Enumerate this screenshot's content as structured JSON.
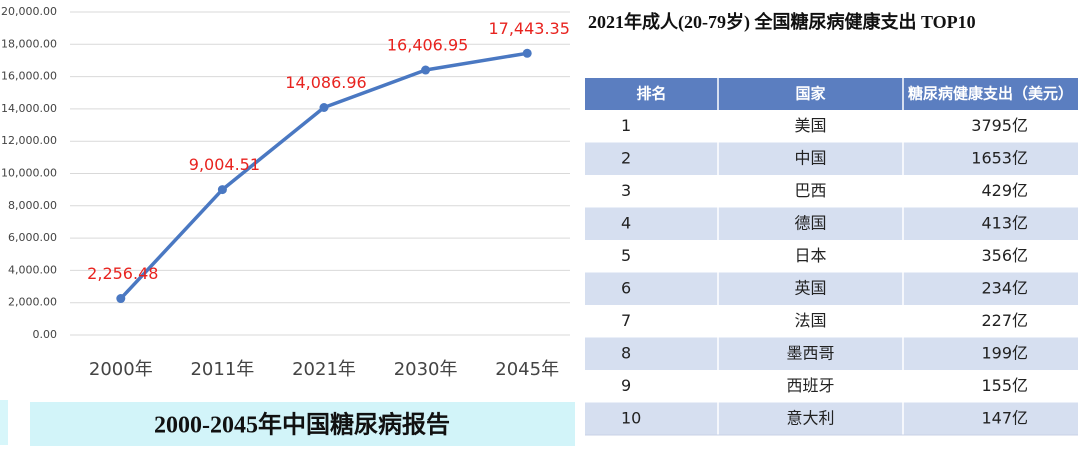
{
  "chart_data": {
    "type": "line",
    "categories": [
      "2000年",
      "2011年",
      "2021年",
      "2030年",
      "2045年"
    ],
    "series": [
      {
        "color": "#4a78c2",
        "values": [
          2256.48,
          9004.51,
          14086.96,
          16406.95,
          17443.35
        ],
        "value_labels": [
          "2,256.48",
          "9,004.51",
          "14,086.96",
          "16,406.95",
          "17,443.35"
        ]
      }
    ],
    "ylim": [
      0,
      20000
    ],
    "yticks": [
      {
        "value": 0,
        "label": "0.00"
      },
      {
        "value": 2000,
        "label": "2,000.00"
      },
      {
        "value": 4000,
        "label": "4,000.00"
      },
      {
        "value": 6000,
        "label": "6,000.00"
      },
      {
        "value": 8000,
        "label": "8,000.00"
      },
      {
        "value": 10000,
        "label": "10,000.00"
      },
      {
        "value": 12000,
        "label": "12,000.00"
      },
      {
        "value": 14000,
        "label": "14,000.00"
      },
      {
        "value": 16000,
        "label": "16,000.00"
      },
      {
        "value": 18000,
        "label": "18,000.00"
      },
      {
        "value": 20000,
        "label": "20,000.00"
      }
    ],
    "grid": true,
    "label_color": "#e8231f"
  },
  "caption": "2000-2045年中国糖尿病报告",
  "table": {
    "title": "2021年成人(20-79岁) 全国糖尿病健康支出 TOP10",
    "header": [
      "排名",
      "国家",
      "糖尿病健康支出（美元）"
    ],
    "rows": [
      [
        "1",
        "美国",
        "3795亿"
      ],
      [
        "2",
        "中国",
        "1653亿"
      ],
      [
        "3",
        "巴西",
        "429亿"
      ],
      [
        "4",
        "德国",
        "413亿"
      ],
      [
        "5",
        "日本",
        "356亿"
      ],
      [
        "6",
        "英国",
        "234亿"
      ],
      [
        "7",
        "法国",
        "227亿"
      ],
      [
        "8",
        "墨西哥",
        "199亿"
      ],
      [
        "9",
        "西班牙",
        "155亿"
      ],
      [
        "10",
        "意大利",
        "147亿"
      ]
    ]
  }
}
